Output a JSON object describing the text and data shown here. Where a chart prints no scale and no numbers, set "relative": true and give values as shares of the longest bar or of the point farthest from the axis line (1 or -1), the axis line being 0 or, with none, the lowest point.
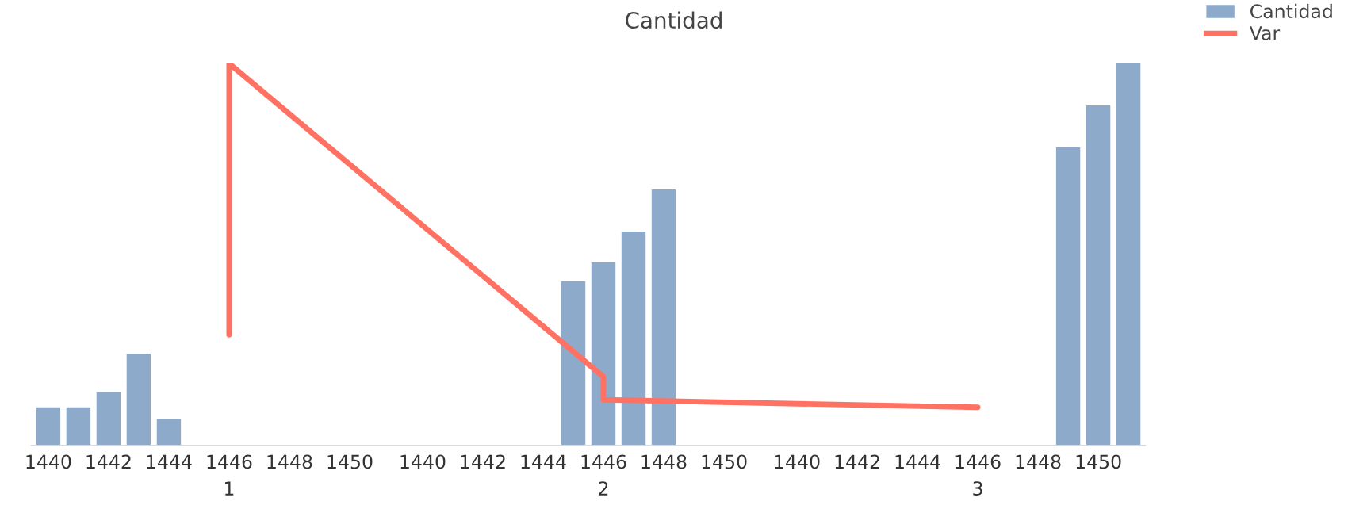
{
  "chart_data": {
    "type": "bar",
    "title": "Cantidad",
    "relative": true,
    "categories": [
      "1440",
      null,
      "1442",
      null,
      "1444",
      null,
      "1446\n1",
      null,
      "1448",
      null,
      "1450",
      null,
      "1440",
      null,
      "1442",
      null,
      "1444",
      null,
      "1446\n2",
      null,
      "1448",
      null,
      "1450",
      null,
      "1440",
      null,
      "1442",
      null,
      "1444",
      null,
      "1446\n3",
      null,
      "1448",
      null,
      "1450",
      null
    ],
    "series": [
      {
        "name": "Cantidad",
        "color": "#8eaacb",
        "values": [
          0.1,
          0.1,
          0.14,
          0.24,
          0.07,
          null,
          null,
          null,
          null,
          null,
          null,
          null,
          null,
          null,
          null,
          null,
          null,
          0.43,
          0.48,
          0.56,
          0.67,
          null,
          null,
          null,
          null,
          null,
          null,
          null,
          null,
          null,
          null,
          null,
          null,
          0.78,
          0.89,
          1.0
        ]
      },
      {
        "name": "Var",
        "type": "line",
        "color": "#ff7263",
        "x": [
          "1446\n1",
          "1446\n1",
          "1446\n2",
          "1446\n2",
          "1446\n3"
        ],
        "values": [
          0.29,
          1.0,
          0.18,
          0.12,
          0.1
        ]
      }
    ],
    "legend": "top right"
  }
}
